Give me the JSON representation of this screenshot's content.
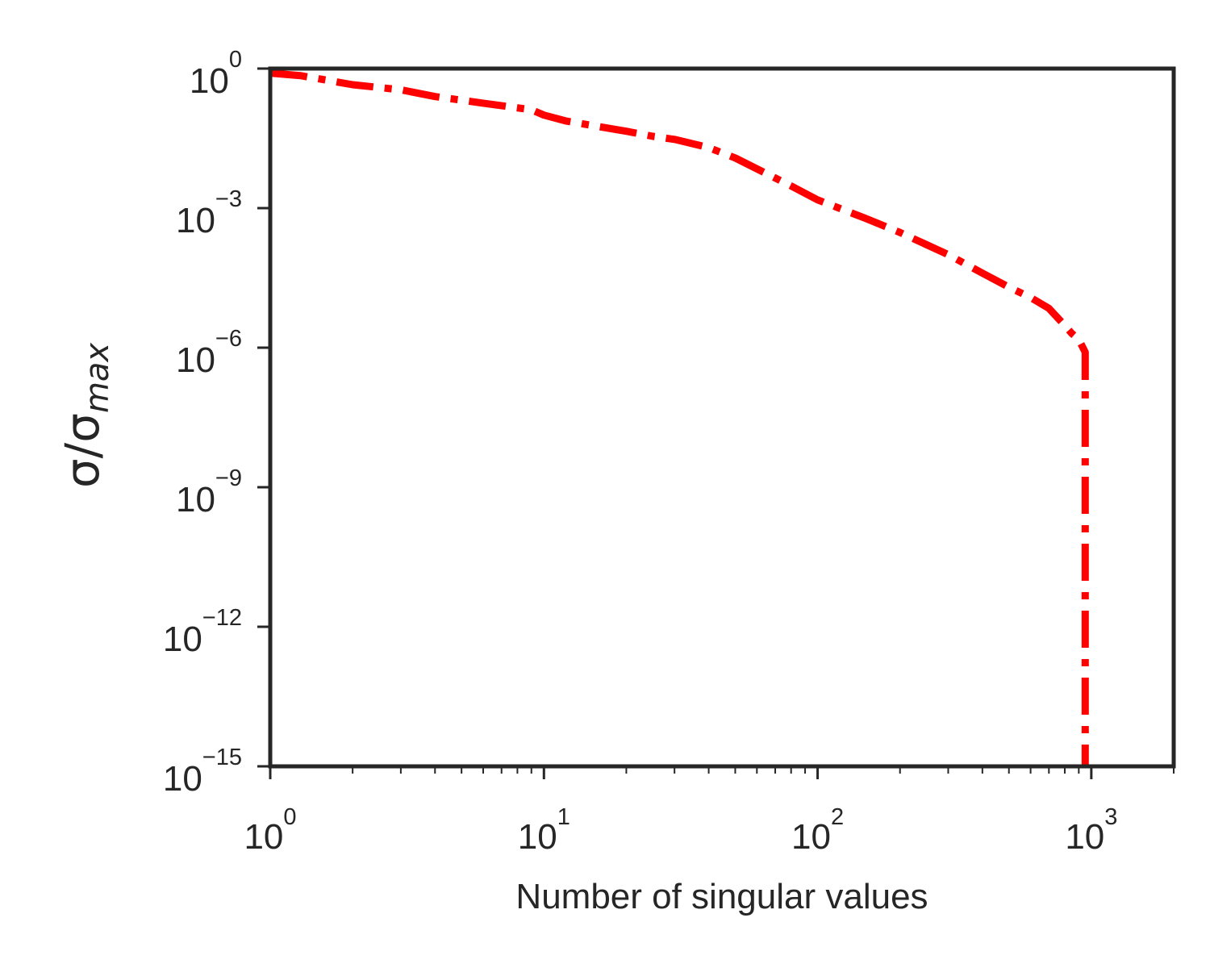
{
  "chart_data": {
    "type": "line",
    "xlabel": "Number of singular values",
    "ylabel": "σ/σ",
    "ylabel_subscript": "max",
    "x_scale": "log",
    "y_scale": "log",
    "xlim": [
      1,
      2000
    ],
    "ylim": [
      1e-15,
      1
    ],
    "grid": false,
    "x_ticks": [
      {
        "base": "10",
        "exp": "0",
        "value": 1
      },
      {
        "base": "10",
        "exp": "1",
        "value": 10
      },
      {
        "base": "10",
        "exp": "2",
        "value": 100
      },
      {
        "base": "10",
        "exp": "3",
        "value": 1000
      }
    ],
    "y_ticks": [
      {
        "base": "10",
        "exp": "0",
        "value": 1
      },
      {
        "base": "10",
        "exp": "−3",
        "value": 0.001
      },
      {
        "base": "10",
        "exp": "−6",
        "value": 1e-06
      },
      {
        "base": "10",
        "exp": "−9",
        "value": 1e-09
      },
      {
        "base": "10",
        "exp": "−12",
        "value": 1e-12
      },
      {
        "base": "10",
        "exp": "−15",
        "value": 1e-15
      }
    ],
    "series": [
      {
        "color": "#ff0000",
        "line_style": "dash-dot",
        "x": [
          1,
          1.3,
          2,
          3,
          4,
          6,
          9,
          10,
          12,
          15,
          20,
          25,
          30,
          40,
          50,
          60,
          80,
          100,
          150,
          200,
          300,
          400,
          500,
          600,
          700,
          800,
          850,
          900,
          950,
          950,
          950,
          950
        ],
        "y": [
          0.8,
          0.7,
          0.45,
          0.35,
          0.25,
          0.18,
          0.13,
          0.1,
          0.075,
          0.06,
          0.045,
          0.035,
          0.03,
          0.02,
          0.012,
          0.007,
          0.003,
          0.0015,
          0.0006,
          0.0003,
          0.0001,
          4e-05,
          2e-05,
          1.2e-05,
          7e-06,
          3e-06,
          2e-06,
          1.5e-06,
          8e-07,
          1e-08,
          1e-12,
          1e-15
        ]
      }
    ]
  }
}
